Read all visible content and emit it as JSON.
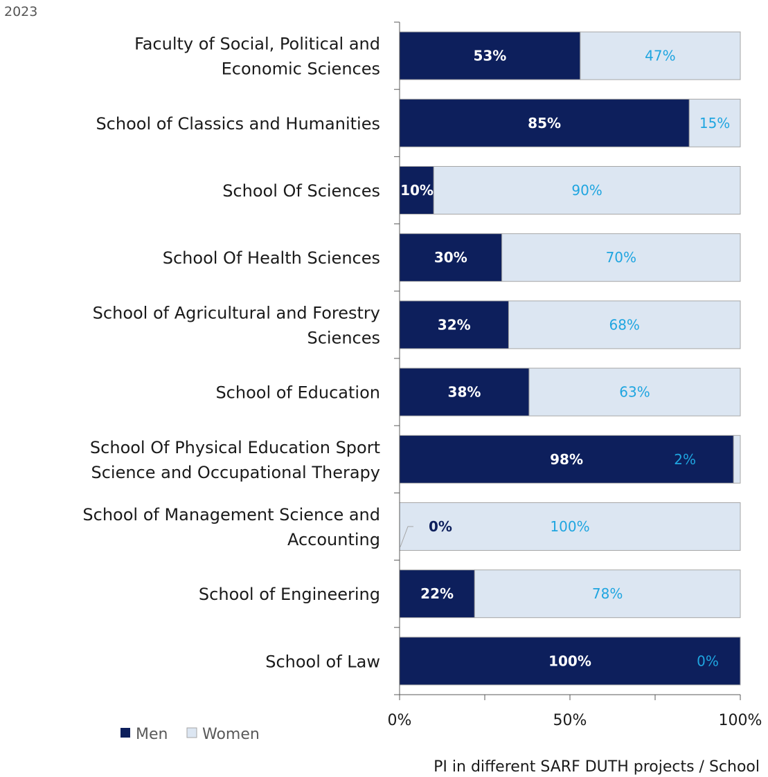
{
  "header": {
    "year": "2023"
  },
  "chart_data": {
    "type": "bar",
    "orientation": "horizontal",
    "stacked": "percent",
    "categories": [
      "Faculty of Social, Political and Economic Sciences",
      "School of Classics and Humanities",
      "School Of Sciences",
      "School Of Health Sciences",
      "School of Agricultural and Forestry Sciences",
      "School of Education",
      "School Of Physical Education Sport Science and Occupational Therapy",
      "School of Management Science and Accounting",
      "School of Engineering",
      "School of Law"
    ],
    "series": [
      {
        "name": "Men",
        "color": "#0d1f5c",
        "values": [
          53,
          85,
          10,
          30,
          32,
          38,
          98,
          0,
          22,
          100
        ],
        "labels": [
          "53%",
          "85%",
          "10%",
          "30%",
          "32%",
          "38%",
          "98%",
          "0%",
          "22%",
          "100%"
        ]
      },
      {
        "name": "Women",
        "color": "#dce6f2",
        "values": [
          47,
          15,
          90,
          70,
          68,
          63,
          2,
          100,
          78,
          0
        ],
        "labels": [
          "47%",
          "15%",
          "90%",
          "70%",
          "68%",
          "63%",
          "2%",
          "100%",
          "78%",
          "0%"
        ]
      }
    ],
    "label_colors": {
      "Men": "#ffffff",
      "Women": "#1fa5e0",
      "zero_men": "#0d1f5c"
    },
    "x_ticks": [
      "0%",
      "50%",
      "100%"
    ],
    "xlim": [
      0,
      100
    ],
    "xlabel": "PI in different SARF DUTH projects / School",
    "legend": "bottom-left",
    "grid": false
  }
}
